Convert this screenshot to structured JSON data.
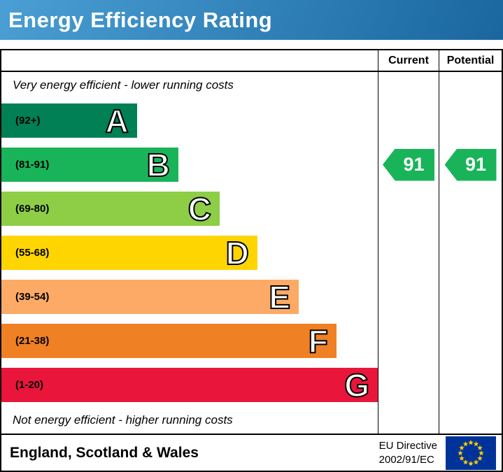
{
  "header": {
    "title": "Energy Efficiency Rating",
    "bg_light": "#4a9fd4",
    "bg_dark": "#1a669f"
  },
  "table": {
    "current_label": "Current",
    "potential_label": "Potential",
    "top_note": "Very energy efficient - lower running costs",
    "bottom_note": "Not energy efficient - higher running costs"
  },
  "bands": [
    {
      "letter": "A",
      "range": "(92+)",
      "color": "#008054",
      "width_pct": 36
    },
    {
      "letter": "B",
      "range": "(81-91)",
      "color": "#19b459",
      "width_pct": 47
    },
    {
      "letter": "C",
      "range": "(69-80)",
      "color": "#8dce46",
      "width_pct": 58
    },
    {
      "letter": "D",
      "range": "(55-68)",
      "color": "#ffd500",
      "width_pct": 68
    },
    {
      "letter": "E",
      "range": "(39-54)",
      "color": "#fcaa65",
      "width_pct": 79
    },
    {
      "letter": "F",
      "range": "(21-38)",
      "color": "#ef8023",
      "width_pct": 89
    },
    {
      "letter": "G",
      "range": "(1-20)",
      "color": "#e9153b",
      "width_pct": 100
    }
  ],
  "current": {
    "value": "91",
    "band": "B",
    "color": "#19b459"
  },
  "potential": {
    "value": "91",
    "band": "B",
    "color": "#19b459"
  },
  "footer": {
    "region": "England, Scotland & Wales",
    "directive_line1": "EU Directive",
    "directive_line2": "2002/91/EC"
  },
  "chart_data": {
    "type": "bar",
    "title": "Energy Efficiency Rating",
    "categories": [
      "A",
      "B",
      "C",
      "D",
      "E",
      "F",
      "G"
    ],
    "band_ranges": [
      "(92+)",
      "(81-91)",
      "(69-80)",
      "(55-68)",
      "(39-54)",
      "(21-38)",
      "(1-20)"
    ],
    "values": [
      36,
      47,
      58,
      68,
      79,
      89,
      100
    ],
    "values_unit": "bar length as % of chart width",
    "series": [
      {
        "name": "Current",
        "value": 91,
        "band": "B"
      },
      {
        "name": "Potential",
        "value": 91,
        "band": "B"
      }
    ],
    "annotations": [
      "Very energy efficient - lower running costs",
      "Not energy efficient - higher running costs"
    ],
    "legend_position": "none",
    "grid": false
  }
}
